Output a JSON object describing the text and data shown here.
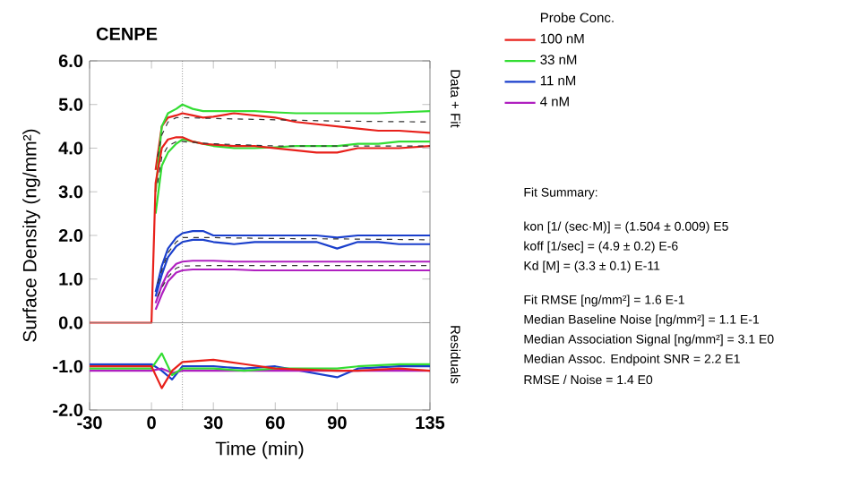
{
  "chart_data": {
    "type": "line",
    "title": "CENPE",
    "xlabel": "Time (min)",
    "ylabel": "Surface Density (ng/mm²)",
    "legend_title": "Probe Conc.",
    "xlim": [
      -30,
      135
    ],
    "ylim": [
      -2,
      6
    ],
    "xticks": [
      -30,
      0,
      30,
      60,
      90,
      135
    ],
    "yticks": [
      {
        "value": -2,
        "label": "-2.0"
      },
      {
        "value": -1,
        "label": "-1.0"
      },
      {
        "value": 0,
        "label": "0.0"
      },
      {
        "value": 1,
        "label": "1.0"
      },
      {
        "value": 2,
        "label": "2.0"
      },
      {
        "value": 3,
        "label": "3.0"
      },
      {
        "value": 4,
        "label": "4.0"
      },
      {
        "value": 5,
        "label": "5.0"
      },
      {
        "value": 6,
        "label": "6.0"
      }
    ],
    "legend": "right",
    "grid": false,
    "marker": "none",
    "ref_lines": [
      {
        "axis": "x",
        "value": 15,
        "color": "#555555",
        "line_style": "dotted"
      },
      {
        "axis": "y",
        "value": 0,
        "color": "#888888",
        "line_style": "solid"
      }
    ],
    "series": [
      {
        "name": "100 nM",
        "color": "#e8201a",
        "x": [
          2,
          5,
          8,
          12,
          15,
          20,
          25,
          30,
          40,
          50,
          60,
          70,
          80,
          90,
          100,
          110,
          120,
          135
        ],
        "values": [
          3.5,
          4.5,
          4.7,
          4.75,
          4.8,
          4.75,
          4.7,
          4.72,
          4.8,
          4.75,
          4.7,
          4.6,
          4.55,
          4.5,
          4.45,
          4.4,
          4.4,
          4.35
        ]
      },
      {
        "name": "33 nM",
        "color": "#33dd33",
        "x": [
          2,
          5,
          8,
          12,
          15,
          20,
          25,
          30,
          40,
          50,
          60,
          70,
          80,
          90,
          100,
          110,
          120,
          135
        ],
        "values": [
          3.0,
          4.5,
          4.8,
          4.9,
          5.0,
          4.9,
          4.85,
          4.85,
          4.85,
          4.85,
          4.82,
          4.8,
          4.8,
          4.8,
          4.8,
          4.8,
          4.82,
          4.85
        ]
      },
      {
        "name": "11 nM",
        "color": "#1a3fcc",
        "x": [
          2,
          5,
          8,
          12,
          15,
          20,
          25,
          30,
          40,
          50,
          60,
          70,
          80,
          90,
          100,
          110,
          120,
          135
        ],
        "values": [
          0.7,
          1.3,
          1.7,
          1.95,
          2.05,
          2.1,
          2.1,
          2.0,
          2.0,
          2.0,
          2.0,
          2.0,
          2.0,
          1.95,
          2.0,
          2.0,
          2.0,
          2.0
        ]
      },
      {
        "name": "4 nM",
        "color": "#b020c0",
        "x": [
          2,
          5,
          8,
          12,
          15,
          20,
          25,
          30,
          40,
          50,
          60,
          70,
          80,
          90,
          100,
          110,
          120,
          135
        ],
        "values": [
          0.45,
          0.85,
          1.15,
          1.35,
          1.4,
          1.42,
          1.42,
          1.42,
          1.4,
          1.4,
          1.4,
          1.4,
          1.4,
          1.4,
          1.4,
          1.4,
          1.4,
          1.4
        ]
      },
      {
        "color": "#33dd33",
        "x": [
          2,
          5,
          8,
          12,
          15,
          20,
          25,
          30,
          40,
          50,
          60,
          70,
          80,
          90,
          100,
          110,
          120,
          135
        ],
        "values": [
          2.5,
          3.6,
          3.9,
          4.1,
          4.2,
          4.15,
          4.1,
          4.05,
          4.0,
          4.0,
          4.02,
          4.05,
          4.05,
          4.05,
          4.1,
          4.1,
          4.15,
          4.15
        ]
      },
      {
        "color": "#1a3fcc",
        "x": [
          2,
          5,
          8,
          12,
          15,
          20,
          25,
          30,
          40,
          50,
          60,
          70,
          80,
          90,
          100,
          110,
          120,
          135
        ],
        "values": [
          0.6,
          1.1,
          1.5,
          1.75,
          1.85,
          1.9,
          1.9,
          1.85,
          1.8,
          1.85,
          1.85,
          1.85,
          1.85,
          1.7,
          1.85,
          1.85,
          1.8,
          1.8
        ]
      },
      {
        "color": "#b020c0",
        "x": [
          2,
          5,
          8,
          12,
          15,
          20,
          25,
          30,
          40,
          50,
          60,
          70,
          80,
          90,
          100,
          110,
          120,
          135
        ],
        "values": [
          0.3,
          0.65,
          0.95,
          1.15,
          1.2,
          1.22,
          1.22,
          1.22,
          1.22,
          1.2,
          1.2,
          1.2,
          1.2,
          1.2,
          1.2,
          1.2,
          1.2,
          1.2
        ]
      },
      {
        "color": "#e8201a",
        "x": [
          -30,
          -20,
          -10,
          0,
          2,
          5,
          8,
          12,
          15,
          20,
          25,
          30,
          40,
          50,
          60,
          70,
          80,
          90,
          100,
          110,
          120,
          135
        ],
        "values": [
          0.0,
          0.0,
          0.0,
          0.0,
          3.2,
          4.0,
          4.2,
          4.25,
          4.25,
          4.15,
          4.1,
          4.08,
          4.05,
          4.05,
          4.0,
          3.95,
          3.9,
          3.9,
          4.0,
          4.0,
          4.0,
          4.05
        ]
      },
      {
        "color": "#333333",
        "line_style": "dashed",
        "x": [
          3,
          5,
          8,
          12,
          15,
          30,
          60,
          90,
          135
        ],
        "values": [
          3.8,
          4.3,
          4.6,
          4.7,
          4.7,
          4.68,
          4.65,
          4.62,
          4.6
        ]
      },
      {
        "color": "#333333",
        "line_style": "dashed",
        "x": [
          3,
          5,
          8,
          12,
          15,
          30,
          60,
          90,
          135
        ],
        "values": [
          3.2,
          3.8,
          4.05,
          4.15,
          4.15,
          4.1,
          4.05,
          4.05,
          4.05
        ]
      },
      {
        "color": "#333333",
        "line_style": "dashed",
        "x": [
          3,
          5,
          8,
          12,
          15,
          30,
          60,
          90,
          135
        ],
        "values": [
          0.9,
          1.2,
          1.6,
          1.85,
          1.95,
          1.95,
          1.93,
          1.92,
          1.9
        ]
      },
      {
        "color": "#333333",
        "line_style": "dashed",
        "x": [
          3,
          5,
          8,
          12,
          15,
          30,
          60,
          90,
          135
        ],
        "values": [
          0.6,
          0.8,
          1.05,
          1.25,
          1.3,
          1.31,
          1.31,
          1.31,
          1.31
        ]
      },
      {
        "color": "#1a3fcc",
        "x": [
          -30,
          -10,
          0,
          5,
          10,
          15,
          30,
          45,
          60,
          90,
          100,
          120,
          135
        ],
        "values": [
          -0.95,
          -0.95,
          -0.95,
          -1.1,
          -1.3,
          -1.0,
          -1.0,
          -1.05,
          -1.0,
          -1.25,
          -1.05,
          -1.0,
          -1.0
        ]
      },
      {
        "color": "#b020c0",
        "x": [
          -30,
          -10,
          0,
          5,
          10,
          15,
          30,
          45,
          60,
          90,
          100,
          120,
          135
        ],
        "values": [
          -1.1,
          -1.1,
          -1.1,
          -1.05,
          -1.15,
          -1.1,
          -1.1,
          -1.1,
          -1.1,
          -1.1,
          -1.1,
          -1.1,
          -1.1
        ]
      },
      {
        "color": "#33dd33",
        "x": [
          -30,
          -10,
          0,
          5,
          10,
          15,
          30,
          45,
          60,
          90,
          100,
          120,
          135
        ],
        "values": [
          -1.05,
          -1.05,
          -1.05,
          -0.7,
          -1.2,
          -1.05,
          -1.05,
          -1.1,
          -1.05,
          -1.05,
          -1.0,
          -0.95,
          -0.95
        ]
      },
      {
        "color": "#e8201a",
        "x": [
          -30,
          -10,
          0,
          5,
          10,
          15,
          30,
          45,
          60,
          90,
          100,
          120,
          135
        ],
        "values": [
          -1.0,
          -1.0,
          -1.0,
          -1.5,
          -1.1,
          -0.9,
          -0.85,
          -0.95,
          -1.05,
          -1.1,
          -1.1,
          -1.05,
          -1.1
        ]
      }
    ],
    "annotations": [
      "Data + Fit",
      "Residuals",
      "Fit Summary:",
      "kon  [1/ (sec·M)]  =   (1.504 ± 0.009) E5",
      "koff  [1/sec]  =   (4.9 ± 0.2) E-6",
      "Kd  [M]  =   (3.3 ± 0.1) E-11",
      "Fit RMSE [ng/mm²]  =   1.6 E-1",
      "Median Baseline Noise [ng/mm²]  =   1.1 E-1",
      "Median Association Signal [ng/mm²]  =   3.1 E0",
      "Median Assoc. Endpoint SNR  =   2.2 E1",
      "RMSE / Noise  =   1.4 E0"
    ]
  }
}
